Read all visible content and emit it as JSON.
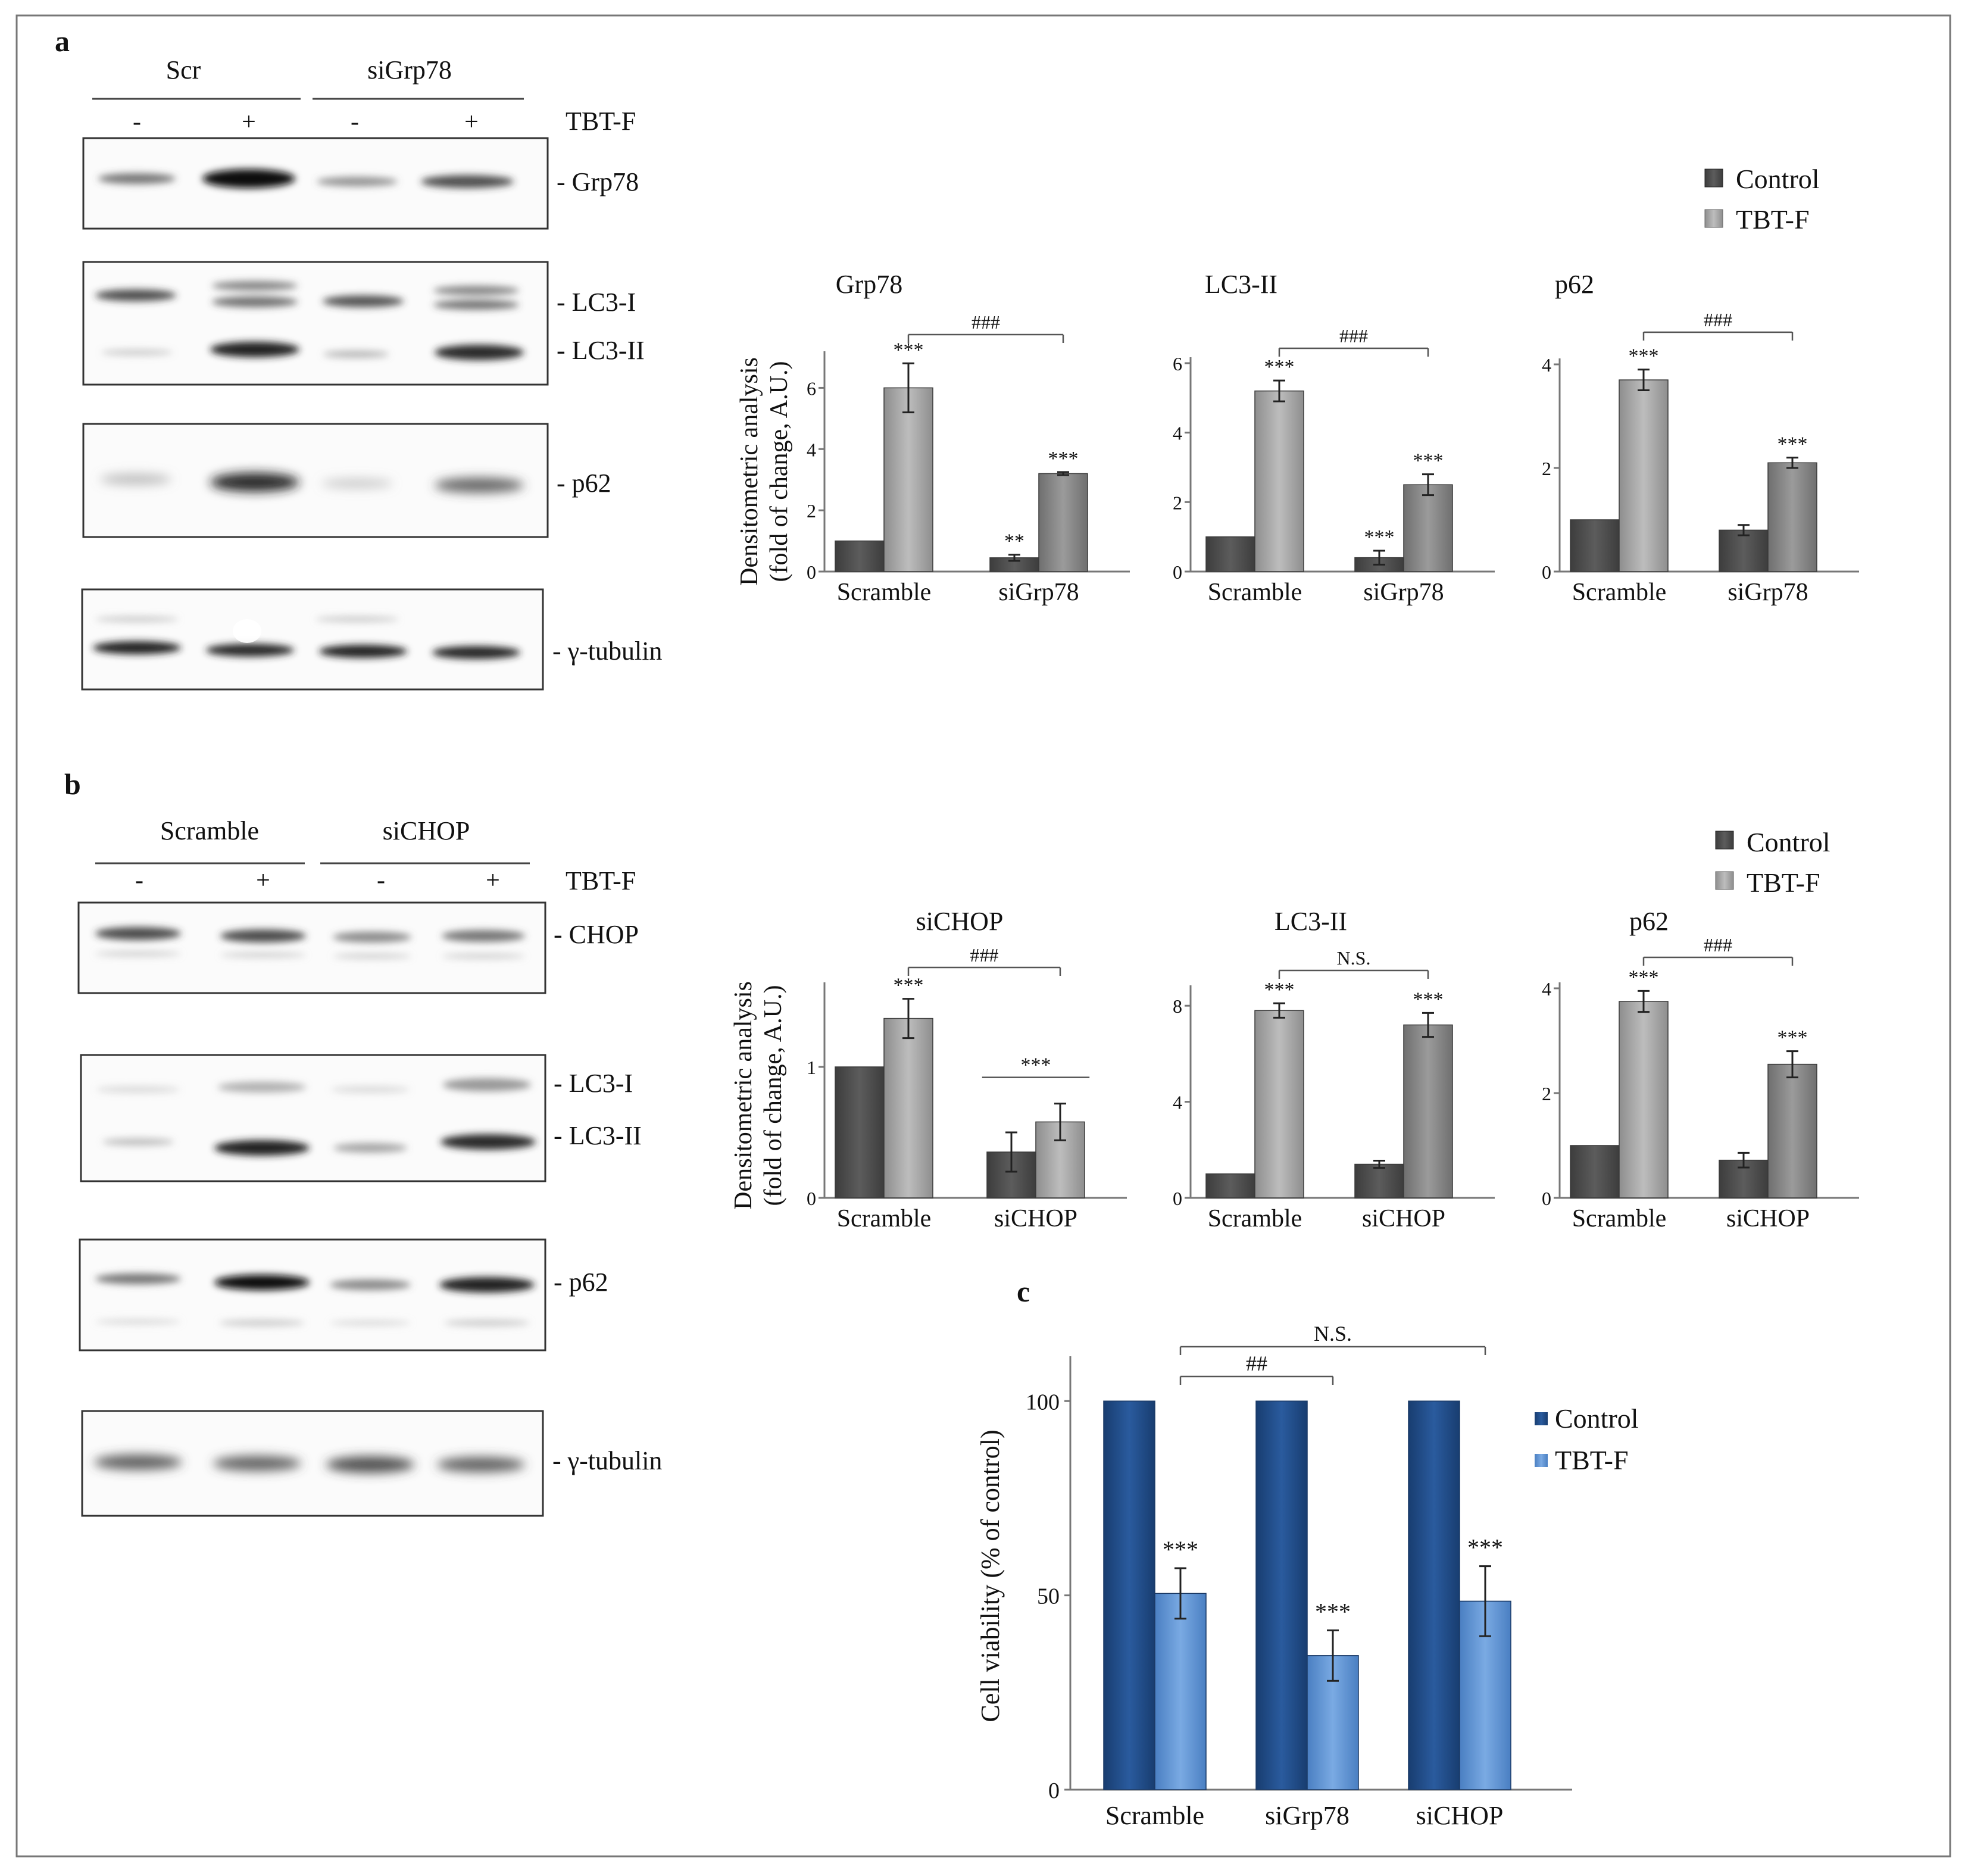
{
  "colors": {
    "control_dark": "#4d4d4d",
    "tbtf_gray": "#a6a6a6",
    "tbtf_mid": "#8c8c8c",
    "control_blue": "#1f4a85",
    "tbtf_blue": "#5b8fd0",
    "frame": "#555555"
  },
  "panel_a": {
    "letter": "a",
    "blot": {
      "groups": [
        "Scr",
        "siGrp78"
      ],
      "treatments": [
        "-",
        "+",
        "-",
        "+"
      ],
      "treatment_label": "TBT-F",
      "band_labels": [
        "- Grp78",
        "- LC3-I",
        "- LC3-II",
        "- p62",
        "- γ-tubulin"
      ]
    },
    "legend": [
      "Control",
      "TBT-F"
    ],
    "y_title_line1": "Densitometric analysis",
    "y_title_line2": "(fold of change, A.U.)"
  },
  "panel_b": {
    "letter": "b",
    "blot": {
      "groups": [
        "Scramble",
        "siCHOP"
      ],
      "treatments": [
        "-",
        "+",
        "-",
        "+"
      ],
      "treatment_label": "TBT-F",
      "band_labels": [
        "- CHOP",
        "- LC3-I",
        "- LC3-II",
        "- p62",
        "- γ-tubulin"
      ]
    },
    "legend": [
      "Control",
      "TBT-F"
    ],
    "y_title_line1": "Densitometric analysis",
    "y_title_line2": "(fold of change, A.U.)"
  },
  "panel_c": {
    "letter": "c",
    "legend": [
      "Control",
      "TBT-F"
    ]
  },
  "chart_data": [
    {
      "id": "a1",
      "type": "bar",
      "title": "Grp78",
      "categories": [
        "Scramble",
        "siGrp78"
      ],
      "series": [
        {
          "name": "Control",
          "values": [
            1,
            0.45
          ]
        },
        {
          "name": "TBT-F",
          "values": [
            6,
            3.2
          ]
        }
      ],
      "errors": [
        [
          0,
          0.1
        ],
        [
          0.8,
          0.05
        ]
      ],
      "yticks": [
        0,
        2,
        4,
        6
      ],
      "ylim": [
        0,
        7
      ],
      "stars": [
        [
          "",
          "**"
        ],
        [
          "***",
          "***"
        ]
      ],
      "bracket": {
        "label": "###"
      }
    },
    {
      "id": "a2",
      "type": "bar",
      "title": "LC3-II",
      "categories": [
        "Scramble",
        "siGrp78"
      ],
      "series": [
        {
          "name": "Control",
          "values": [
            1,
            0.4
          ]
        },
        {
          "name": "TBT-F",
          "values": [
            5.2,
            2.5
          ]
        }
      ],
      "errors": [
        [
          0,
          0.2
        ],
        [
          0.3,
          0.3
        ]
      ],
      "yticks": [
        0,
        2,
        4,
        6
      ],
      "ylim": [
        0,
        6
      ],
      "stars": [
        [
          "",
          "***"
        ],
        [
          "***",
          "***"
        ]
      ],
      "bracket": {
        "label": "###"
      }
    },
    {
      "id": "a3",
      "type": "bar",
      "title": "p62",
      "categories": [
        "Scramble",
        "siGrp78"
      ],
      "series": [
        {
          "name": "Control",
          "values": [
            1,
            0.8
          ]
        },
        {
          "name": "TBT-F",
          "values": [
            3.7,
            2.1
          ]
        }
      ],
      "errors": [
        [
          0,
          0.1
        ],
        [
          0.2,
          0.1
        ]
      ],
      "yticks": [
        0,
        2,
        4
      ],
      "ylim": [
        0,
        4
      ],
      "stars": [
        [
          "",
          ""
        ],
        [
          "***",
          "***"
        ]
      ],
      "bracket": {
        "label": "###"
      }
    },
    {
      "id": "b1",
      "type": "bar",
      "title": "siCHOP",
      "categories": [
        "Scramble",
        "siCHOP"
      ],
      "series": [
        {
          "name": "Control",
          "values": [
            1,
            0.35
          ]
        },
        {
          "name": "TBT-F",
          "values": [
            1.37,
            0.58
          ]
        }
      ],
      "errors": [
        [
          0,
          0.15
        ],
        [
          0.15,
          0.14
        ]
      ],
      "yticks": [
        0,
        1
      ],
      "ylim": [
        0,
        1.6
      ],
      "stars": [
        [
          "",
          ""
        ],
        [
          "***",
          ""
        ]
      ],
      "bracket": {
        "label": "###"
      },
      "group_bracket": {
        "label": "***"
      }
    },
    {
      "id": "b2",
      "type": "bar",
      "title": "LC3-II",
      "categories": [
        "Scramble",
        "siCHOP"
      ],
      "series": [
        {
          "name": "Control",
          "values": [
            1,
            1.4
          ]
        },
        {
          "name": "TBT-F",
          "values": [
            7.8,
            7.2
          ]
        }
      ],
      "errors": [
        [
          0,
          0.15
        ],
        [
          0.3,
          0.5
        ]
      ],
      "yticks": [
        0,
        4,
        8
      ],
      "ylim": [
        0,
        8.6
      ],
      "stars": [
        [
          "",
          ""
        ],
        [
          "***",
          "***"
        ]
      ],
      "bracket": {
        "label": "N.S."
      }
    },
    {
      "id": "b3",
      "type": "bar",
      "title": "p62",
      "categories": [
        "Scramble",
        "siCHOP"
      ],
      "series": [
        {
          "name": "Control",
          "values": [
            1,
            0.72
          ]
        },
        {
          "name": "TBT-F",
          "values": [
            3.75,
            2.55
          ]
        }
      ],
      "errors": [
        [
          0,
          0.14
        ],
        [
          0.2,
          0.25
        ]
      ],
      "yticks": [
        0,
        2,
        4
      ],
      "ylim": [
        0,
        4
      ],
      "stars": [
        [
          "",
          ""
        ],
        [
          "***",
          "***"
        ]
      ],
      "bracket": {
        "label": "###"
      }
    },
    {
      "id": "c1",
      "type": "bar",
      "title": "",
      "ylabel": "Cell viability (% of control)",
      "categories": [
        "Scramble",
        "siGrp78",
        "siCHOP"
      ],
      "series": [
        {
          "name": "Control",
          "values": [
            100,
            100,
            100
          ]
        },
        {
          "name": "TBT-F",
          "values": [
            50.5,
            34.5,
            48.5
          ]
        }
      ],
      "errors": [
        [
          0,
          0,
          0
        ],
        [
          6.5,
          6.5,
          9
        ]
      ],
      "yticks": [
        0,
        50,
        100
      ],
      "ylim": [
        0,
        110
      ],
      "stars": [
        [
          "",
          "",
          ""
        ],
        [
          "***",
          "***",
          "***"
        ]
      ],
      "brackets": [
        {
          "label": "##"
        },
        {
          "label": "N.S."
        }
      ]
    }
  ]
}
